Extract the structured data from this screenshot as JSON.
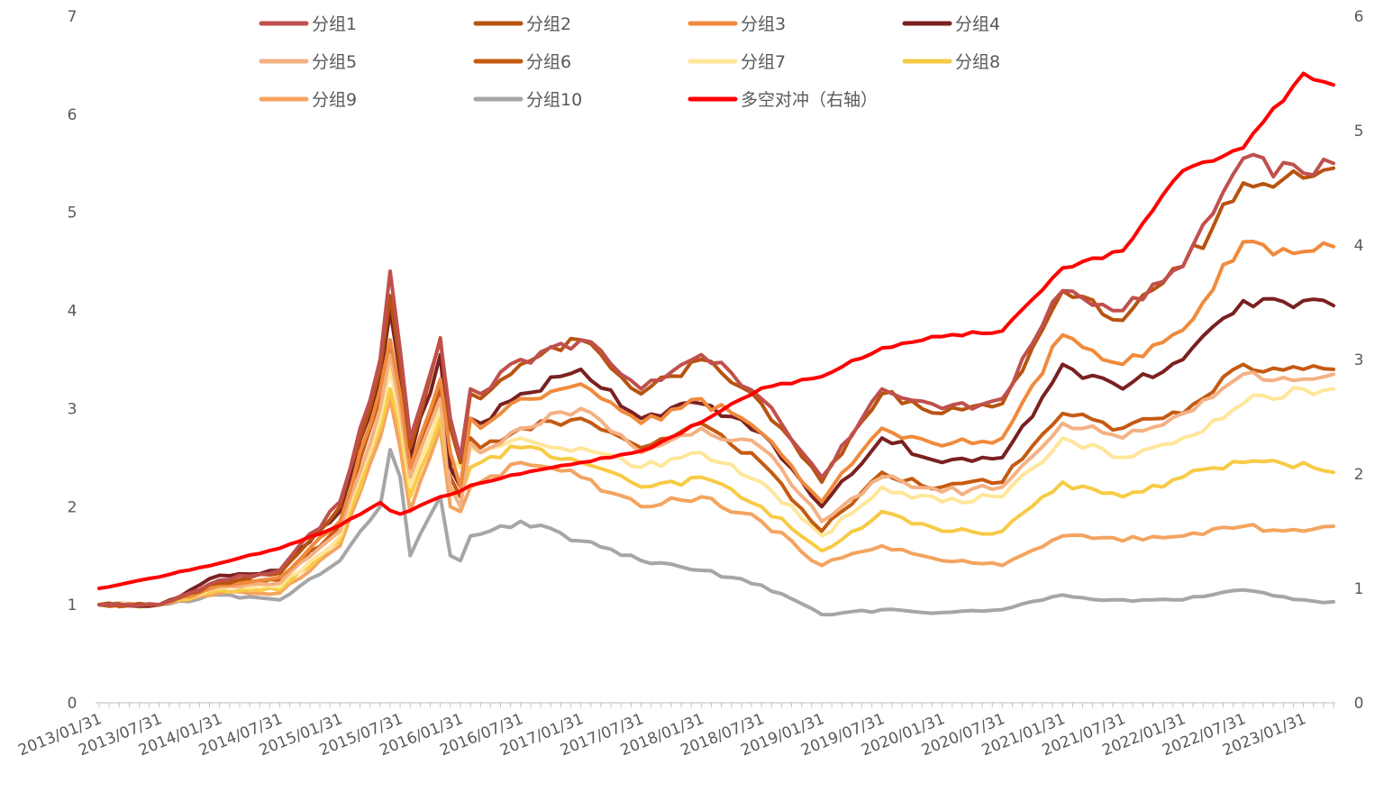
{
  "chart_data": {
    "type": "line",
    "title": "",
    "xlabel": "",
    "ylabel": "",
    "ylabel_right": "",
    "ylim": [
      0,
      7
    ],
    "ylim_right": [
      0,
      6
    ],
    "y_ticks": [
      0,
      1,
      2,
      3,
      4,
      5,
      6,
      7
    ],
    "y_ticks_right": [
      0,
      1,
      2,
      3,
      4,
      5,
      6
    ],
    "legend_position": "top",
    "x_tick_labels": [
      "2013/01/31",
      "2013/07/31",
      "2014/01/31",
      "2014/07/31",
      "2015/01/31",
      "2015/07/31",
      "2016/01/31",
      "2016/07/31",
      "2017/01/31",
      "2017/07/31",
      "2018/01/31",
      "2018/07/31",
      "2019/01/31",
      "2019/07/31",
      "2020/01/31",
      "2020/07/31",
      "2021/01/31",
      "2021/07/31",
      "2022/01/31",
      "2022/07/31",
      "2023/01/31"
    ],
    "x_tick_every": 6,
    "point_count": 124,
    "anchor_note": "series values given at monthly anchor indices (0 = 2013/01/31, 123 = 2023/04/30); intermediate months interpolated",
    "anchor_indices": [
      0,
      6,
      12,
      18,
      24,
      28,
      29,
      30,
      31,
      34,
      35,
      36,
      37,
      38,
      42,
      48,
      54,
      60,
      66,
      72,
      78,
      84,
      90,
      96,
      102,
      108,
      114,
      120,
      123
    ],
    "series": [
      {
        "name": "分组1",
        "axis": "left",
        "color": "#C0504D",
        "values": [
          1.0,
          1.0,
          1.25,
          1.35,
          2.05,
          3.5,
          4.4,
          3.6,
          2.7,
          3.7,
          2.9,
          2.5,
          3.2,
          3.15,
          3.5,
          3.7,
          3.2,
          3.55,
          3.1,
          2.3,
          3.2,
          3.0,
          3.1,
          4.2,
          4.0,
          4.45,
          5.55,
          5.4,
          5.5
        ]
      },
      {
        "name": "分组2",
        "axis": "left",
        "color": "#B8530E",
        "values": [
          1.0,
          1.0,
          1.22,
          1.32,
          2.0,
          3.4,
          4.15,
          3.45,
          2.6,
          3.72,
          2.8,
          2.45,
          3.15,
          3.1,
          3.45,
          3.7,
          3.15,
          3.5,
          3.05,
          2.25,
          3.15,
          2.95,
          3.05,
          4.2,
          3.9,
          4.45,
          5.3,
          5.35,
          5.45
        ]
      },
      {
        "name": "分组3",
        "axis": "left",
        "color": "#F08A3C",
        "values": [
          1.0,
          1.0,
          1.2,
          1.28,
          1.85,
          3.2,
          3.7,
          3.15,
          2.4,
          3.3,
          2.55,
          2.2,
          2.9,
          2.8,
          3.1,
          3.25,
          2.85,
          3.1,
          2.75,
          2.05,
          2.8,
          2.62,
          2.7,
          3.75,
          3.45,
          3.8,
          4.7,
          4.6,
          4.65
        ]
      },
      {
        "name": "分组4",
        "axis": "left",
        "color": "#7B2020",
        "values": [
          1.0,
          1.0,
          1.3,
          1.35,
          1.95,
          3.3,
          4.0,
          3.35,
          2.5,
          3.55,
          2.4,
          2.2,
          2.9,
          2.85,
          3.15,
          3.4,
          2.9,
          3.05,
          2.75,
          2.0,
          2.7,
          2.45,
          2.5,
          3.45,
          3.2,
          3.5,
          4.1,
          4.1,
          4.05
        ]
      },
      {
        "name": "分组5",
        "axis": "left",
        "color": "#F4B183",
        "values": [
          1.0,
          1.0,
          1.18,
          1.22,
          1.75,
          3.0,
          3.55,
          3.0,
          2.3,
          3.1,
          2.2,
          2.0,
          2.65,
          2.55,
          2.8,
          3.0,
          2.55,
          2.8,
          2.6,
          1.85,
          2.3,
          2.15,
          2.2,
          2.85,
          2.7,
          2.95,
          3.35,
          3.3,
          3.35
        ]
      },
      {
        "name": "分组6",
        "axis": "left",
        "color": "#C55A11",
        "values": [
          1.0,
          1.0,
          1.2,
          1.25,
          1.8,
          3.1,
          3.6,
          3.05,
          2.35,
          3.2,
          2.3,
          2.1,
          2.7,
          2.6,
          2.8,
          2.9,
          2.6,
          2.85,
          2.45,
          1.75,
          2.35,
          2.2,
          2.25,
          2.95,
          2.8,
          2.95,
          3.45,
          3.4,
          3.4
        ]
      },
      {
        "name": "分组7",
        "axis": "left",
        "color": "#FFE699",
        "values": [
          1.0,
          1.0,
          1.17,
          1.18,
          1.7,
          2.9,
          3.4,
          2.9,
          2.2,
          3.0,
          2.5,
          2.4,
          2.6,
          2.55,
          2.7,
          2.6,
          2.4,
          2.55,
          2.25,
          1.7,
          2.2,
          2.05,
          2.1,
          2.7,
          2.5,
          2.7,
          3.05,
          3.2,
          3.2
        ]
      },
      {
        "name": "分组8",
        "axis": "left",
        "color": "#F7CB45",
        "values": [
          1.0,
          1.0,
          1.15,
          1.15,
          1.65,
          2.8,
          3.2,
          2.8,
          2.1,
          2.9,
          2.2,
          2.1,
          2.4,
          2.45,
          2.6,
          2.45,
          2.2,
          2.3,
          2.0,
          1.55,
          1.95,
          1.75,
          1.75,
          2.25,
          2.1,
          2.3,
          2.45,
          2.45,
          2.35
        ]
      },
      {
        "name": "分组9",
        "axis": "left",
        "color": "#F4A460",
        "values": [
          1.0,
          1.0,
          1.12,
          1.12,
          1.6,
          2.7,
          3.1,
          2.6,
          1.95,
          2.8,
          2.0,
          1.95,
          2.2,
          2.25,
          2.45,
          2.3,
          2.0,
          2.1,
          1.85,
          1.4,
          1.6,
          1.45,
          1.4,
          1.7,
          1.65,
          1.7,
          1.8,
          1.75,
          1.8
        ]
      },
      {
        "name": "分组10",
        "axis": "left",
        "color": "#A6A6A6",
        "values": [
          1.0,
          1.0,
          1.1,
          1.05,
          1.45,
          2.0,
          2.58,
          2.3,
          1.5,
          2.1,
          1.5,
          1.45,
          1.7,
          1.72,
          1.85,
          1.65,
          1.45,
          1.35,
          1.2,
          0.9,
          0.95,
          0.92,
          0.95,
          1.1,
          1.05,
          1.05,
          1.15,
          1.05,
          1.03
        ]
      },
      {
        "name": "多空对冲（右轴）",
        "axis": "right",
        "color": "#FF0000",
        "values": [
          1.0,
          1.1,
          1.22,
          1.35,
          1.55,
          1.75,
          1.68,
          1.65,
          1.68,
          1.8,
          1.82,
          1.85,
          1.9,
          1.92,
          2.0,
          2.1,
          2.2,
          2.45,
          2.75,
          2.85,
          3.1,
          3.2,
          3.25,
          3.8,
          3.95,
          4.65,
          4.85,
          5.5,
          5.4
        ]
      }
    ]
  }
}
